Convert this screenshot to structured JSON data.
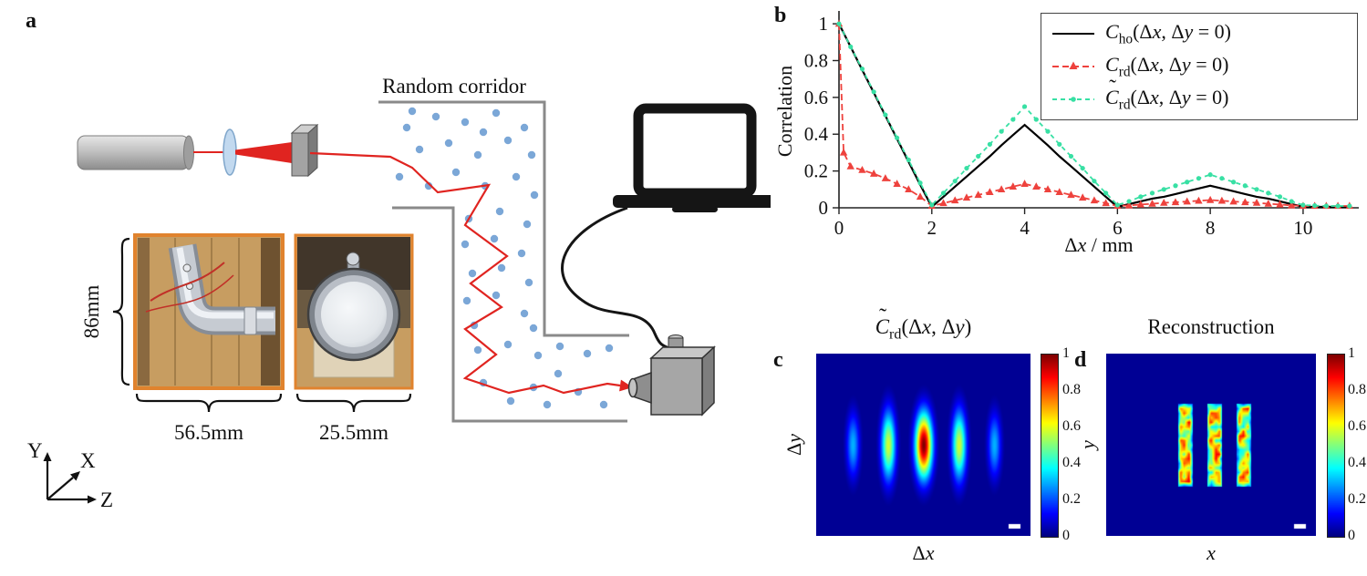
{
  "panels": {
    "a": {
      "label": "a",
      "corridor_label": "Random corridor",
      "dimensions": {
        "height": "86mm",
        "elbow_width": "56.5mm",
        "optic_width": "25.5mm"
      },
      "axis_triad": {
        "up": "Y",
        "depth": "X",
        "right": "Z"
      },
      "diagram_icons": [
        "laser",
        "lens",
        "mirror",
        "corridor-walls",
        "scatterer-dots",
        "beam-path",
        "laptop-icon",
        "camera-icon",
        "photo-pipe-elbow",
        "photo-round-optic",
        "axis-triad"
      ],
      "scatterers": [
        [
          446,
          140
        ],
        [
          478,
          128
        ],
        [
          510,
          134
        ],
        [
          544,
          124
        ],
        [
          575,
          140
        ],
        [
          460,
          164
        ],
        [
          492,
          157
        ],
        [
          524,
          170
        ],
        [
          557,
          154
        ],
        [
          583,
          170
        ],
        [
          438,
          194
        ],
        [
          470,
          204
        ],
        [
          500,
          189
        ],
        [
          532,
          204
        ],
        [
          566,
          194
        ],
        [
          586,
          214
        ],
        [
          452,
          122
        ],
        [
          530,
          145
        ],
        [
          514,
          240
        ],
        [
          548,
          232
        ],
        [
          578,
          246
        ],
        [
          510,
          268
        ],
        [
          542,
          262
        ],
        [
          572,
          278
        ],
        [
          518,
          300
        ],
        [
          550,
          294
        ],
        [
          580,
          310
        ],
        [
          512,
          330
        ],
        [
          544,
          324
        ],
        [
          575,
          344
        ],
        [
          520,
          357
        ],
        [
          585,
          360
        ],
        [
          524,
          384
        ],
        [
          557,
          378
        ],
        [
          590,
          390
        ],
        [
          614,
          380
        ],
        [
          644,
          388
        ],
        [
          668,
          382
        ],
        [
          530,
          420
        ],
        [
          560,
          440
        ],
        [
          600,
          444
        ],
        [
          634,
          430
        ],
        [
          662,
          444
        ],
        [
          612,
          410
        ],
        [
          585,
          425
        ]
      ],
      "beam_path": [
        [
          340,
          168
        ],
        [
          428,
          172
        ],
        [
          452,
          184
        ],
        [
          480,
          211
        ],
        [
          536,
          203
        ],
        [
          510,
          247
        ],
        [
          556,
          281
        ],
        [
          516,
          311
        ],
        [
          550,
          337
        ],
        [
          510,
          361
        ],
        [
          544,
          389
        ],
        [
          510,
          415
        ],
        [
          558,
          431
        ],
        [
          596,
          423
        ],
        [
          618,
          431
        ],
        [
          666,
          421
        ],
        [
          680,
          423
        ]
      ]
    },
    "b": {
      "label": "b"
    },
    "c": {
      "label": "c"
    },
    "d": {
      "label": "d"
    }
  },
  "colors": {
    "beam_red": "#e02420",
    "scatterer_blue": "#7ba7d7",
    "photo_border_orange": "#e0832e",
    "series_black": "#000000",
    "series_red": "#ee423d",
    "series_green": "#38e0a4"
  },
  "chart_data": [
    {
      "type": "line",
      "xlabel": "Δx / mm",
      "ylabel": "Correlation",
      "xlim": [
        0,
        11.2
      ],
      "ylim": [
        0,
        1.05
      ],
      "xticks": [
        0,
        2,
        4,
        6,
        8,
        10
      ],
      "yticks": [
        0,
        0.2,
        0.4,
        0.6,
        0.8,
        1
      ],
      "grid": false,
      "legend_position": "top-right",
      "series": [
        {
          "label": "C_ho(Δx, Δy = 0)",
          "color": "#000000",
          "line": "solid",
          "marker": "none",
          "x_start": 0,
          "x_step": 0.25,
          "y": [
            1,
            0.875,
            0.75,
            0.625,
            0.5,
            0.375,
            0.25,
            0.125,
            0.005,
            0.06,
            0.115,
            0.17,
            0.225,
            0.28,
            0.34,
            0.395,
            0.45,
            0.395,
            0.34,
            0.28,
            0.225,
            0.17,
            0.115,
            0.06,
            0.005,
            0.02,
            0.035,
            0.05,
            0.06,
            0.075,
            0.09,
            0.105,
            0.12,
            0.105,
            0.09,
            0.075,
            0.06,
            0.05,
            0.035,
            0.02,
            0.005,
            0.005,
            0.005,
            0.005,
            0.005
          ]
        },
        {
          "label": "C_rd(Δx, Δy = 0)",
          "color": "#ee423d",
          "line": "dashed",
          "marker": "triangle",
          "x": [
            0,
            0.1,
            0.25,
            0.5,
            0.75,
            1,
            1.25,
            1.5,
            1.75,
            2,
            2.25,
            2.5,
            2.75,
            3,
            3.25,
            3.5,
            3.75,
            4,
            4.25,
            4.5,
            4.75,
            5,
            5.25,
            5.5,
            5.75,
            6,
            6.25,
            6.5,
            6.75,
            7,
            7.25,
            7.5,
            7.75,
            8,
            8.25,
            8.5,
            8.75,
            9,
            9.25,
            9.5,
            9.75,
            10,
            10.25,
            10.5,
            10.75,
            11
          ],
          "y": [
            1,
            0.3,
            0.225,
            0.205,
            0.185,
            0.16,
            0.13,
            0.1,
            0.06,
            0.01,
            0.025,
            0.04,
            0.055,
            0.07,
            0.085,
            0.1,
            0.115,
            0.13,
            0.115,
            0.1,
            0.085,
            0.07,
            0.055,
            0.04,
            0.025,
            0.01,
            0.013,
            0.018,
            0.022,
            0.027,
            0.03,
            0.034,
            0.038,
            0.042,
            0.038,
            0.034,
            0.03,
            0.027,
            0.022,
            0.018,
            0.013,
            0.01,
            0.01,
            0.01,
            0.01,
            0.01
          ]
        },
        {
          "label": "~C_rd(Δx, Δy = 0)",
          "color": "#38e0a4",
          "line": "dashed",
          "marker": "dot",
          "x_start": 0,
          "x_step": 0.25,
          "y": [
            1,
            0.875,
            0.755,
            0.63,
            0.505,
            0.38,
            0.26,
            0.135,
            0.015,
            0.08,
            0.145,
            0.215,
            0.28,
            0.345,
            0.415,
            0.48,
            0.55,
            0.48,
            0.415,
            0.345,
            0.28,
            0.215,
            0.145,
            0.08,
            0.015,
            0.035,
            0.06,
            0.08,
            0.1,
            0.12,
            0.14,
            0.16,
            0.18,
            0.16,
            0.14,
            0.12,
            0.1,
            0.08,
            0.06,
            0.035,
            0.015,
            0.012,
            0.01,
            0.01,
            0.01
          ]
        }
      ]
    },
    {
      "type": "heatmap",
      "title": "~C_rd(Δx, Δy)",
      "xlabel": "Δx",
      "ylabel": "Δy",
      "colormap": "jet",
      "value_range": [
        0,
        1
      ],
      "colorbar_ticks": [
        0,
        0.2,
        0.4,
        0.6,
        0.8,
        1
      ],
      "background": 0.02,
      "cy": 0.5,
      "lobes": [
        {
          "cx": 0.5,
          "amp": 1.0,
          "sx": 0.027,
          "sy": 0.12
        },
        {
          "cx": 0.335,
          "amp": 0.58,
          "sx": 0.023,
          "sy": 0.13
        },
        {
          "cx": 0.665,
          "amp": 0.58,
          "sx": 0.023,
          "sy": 0.13
        },
        {
          "cx": 0.17,
          "amp": 0.3,
          "sx": 0.021,
          "sy": 0.12
        },
        {
          "cx": 0.83,
          "amp": 0.3,
          "sx": 0.021,
          "sy": 0.12
        }
      ],
      "scalebar": true,
      "description": "Correlation pattern: central peak with vertically elongated side lobes at Δx = ±4, ±8 mm"
    },
    {
      "type": "heatmap",
      "title": "Reconstruction",
      "xlabel": "x",
      "ylabel": "y",
      "colormap": "jet",
      "value_range": [
        0,
        1
      ],
      "colorbar_ticks": [
        0,
        0.2,
        0.4,
        0.6,
        0.8,
        1
      ],
      "background": 0.02,
      "bars": [
        {
          "cx": 0.375,
          "half_w": 0.034
        },
        {
          "cx": 0.515,
          "half_w": 0.036
        },
        {
          "cx": 0.655,
          "half_w": 0.034
        }
      ],
      "bar_y": [
        0.27,
        0.73
      ],
      "bar_base": 0.62,
      "bar_noise": 0.28,
      "noise_seed": 12,
      "scalebar": true,
      "description": "Reconstructed triple-slit object: three vertical bright bars on blue background"
    }
  ]
}
